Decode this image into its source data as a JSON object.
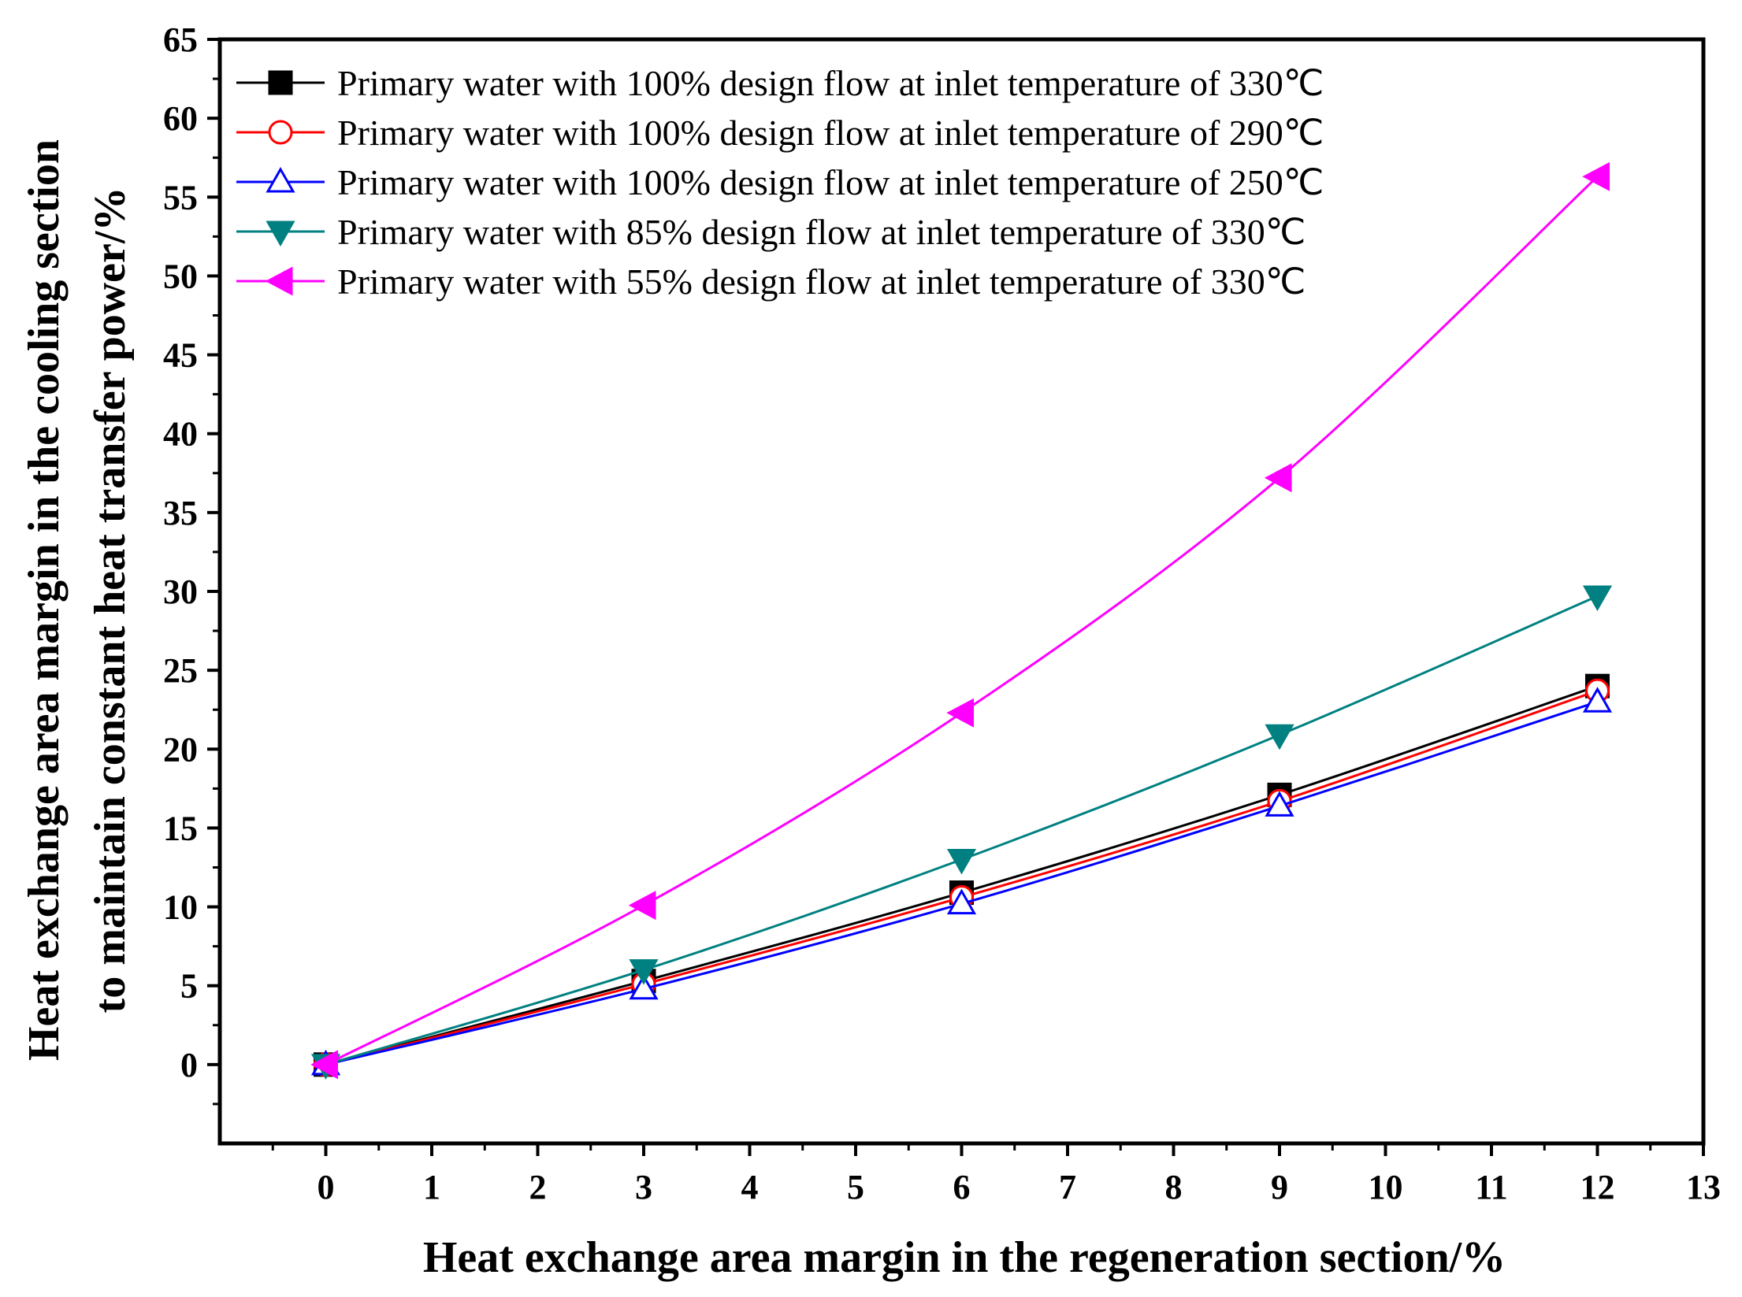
{
  "chart_data": {
    "type": "line",
    "title": "",
    "xlabel": "Heat exchange area margin in the regeneration section/%",
    "ylabel_lines": [
      "Heat exchange area margin in the cooling section",
      "to maintain constant heat transfer power/%"
    ],
    "xlim": [
      -1,
      13
    ],
    "ylim": [
      -5,
      65
    ],
    "xticks": [
      0,
      1,
      2,
      3,
      4,
      5,
      6,
      7,
      8,
      9,
      10,
      11,
      12,
      13
    ],
    "yticks": [
      0,
      5,
      10,
      15,
      20,
      25,
      30,
      35,
      40,
      45,
      50,
      55,
      60,
      65
    ],
    "legend_position": "top-left",
    "grid": false,
    "x": [
      0,
      3,
      6,
      9,
      12
    ],
    "series": [
      {
        "name": "Primary water with 100% design flow at inlet temperature of 330℃",
        "values": [
          0,
          5.3,
          10.9,
          17.1,
          24.0
        ],
        "color": "#000000",
        "marker": "square-filled"
      },
      {
        "name": "Primary water with 100% design flow at inlet temperature of 290℃",
        "values": [
          0,
          5.1,
          10.6,
          16.7,
          23.7
        ],
        "color": "#ff0000",
        "marker": "circle-open"
      },
      {
        "name": "Primary water with 100% design flow at inlet temperature of 250℃",
        "values": [
          0,
          4.8,
          10.2,
          16.4,
          23.0
        ],
        "color": "#0000ff",
        "marker": "triangle-up-open"
      },
      {
        "name": "Primary water with 85% design flow at inlet temperature of 330℃",
        "values": [
          0,
          6.0,
          13.0,
          20.9,
          29.7
        ],
        "color": "#008080",
        "marker": "triangle-down-filled"
      },
      {
        "name": "Primary water with 55% design flow at inlet temperature of 330℃",
        "values": [
          0,
          10.1,
          22.3,
          37.2,
          56.3
        ],
        "color": "#ff00ff",
        "marker": "triangle-left-filled"
      }
    ]
  }
}
